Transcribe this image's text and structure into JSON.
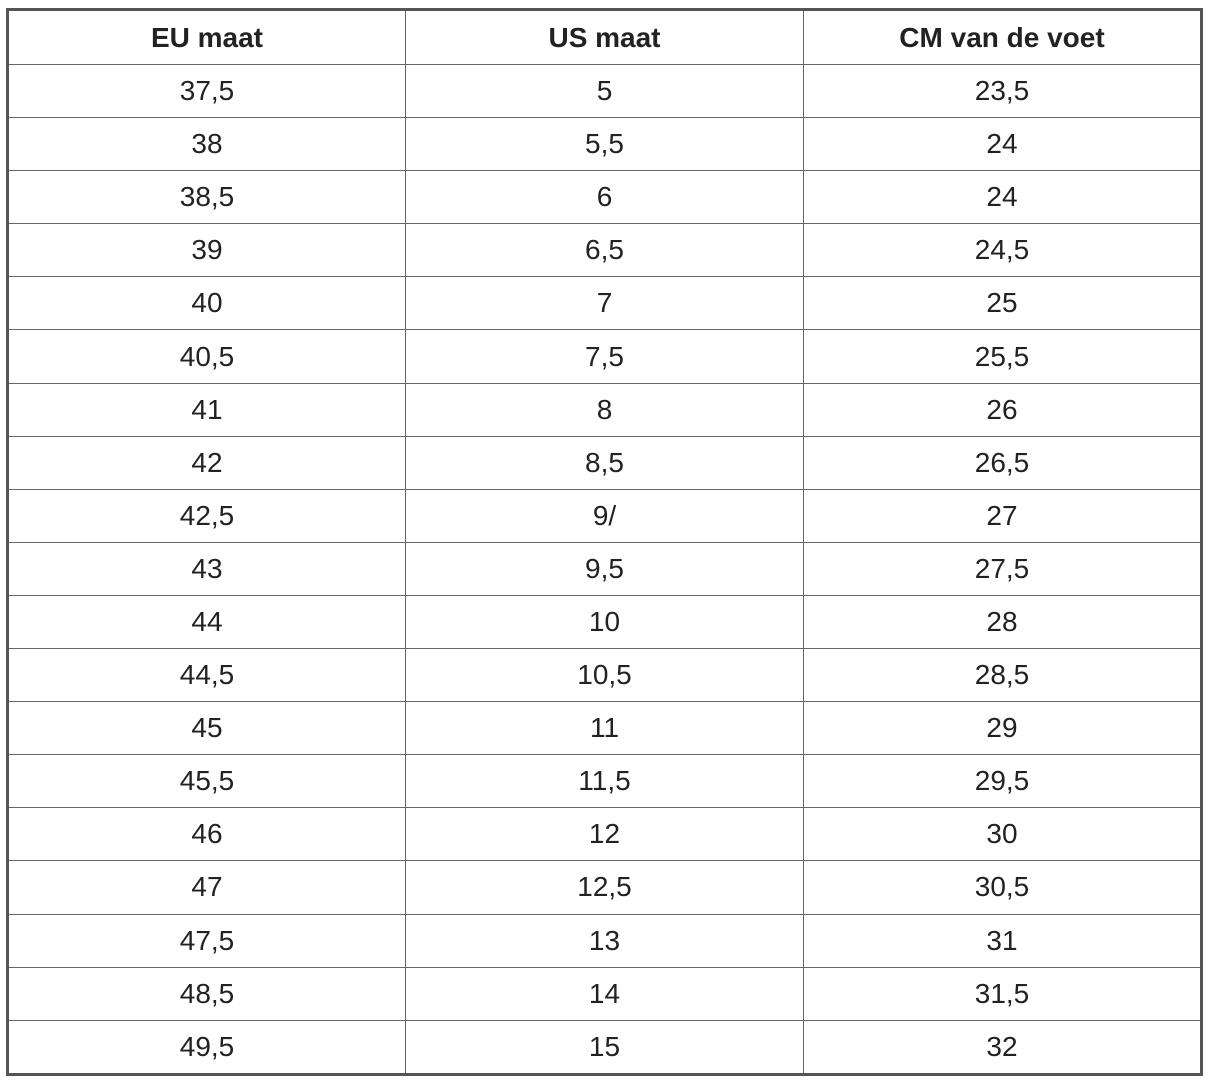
{
  "table": {
    "header": [
      "EU maat",
      "US maat",
      "CM van de voet"
    ],
    "rows": [
      [
        "37,5",
        "5",
        "23,5"
      ],
      [
        "38",
        "5,5",
        "24"
      ],
      [
        "38,5",
        "6",
        "24"
      ],
      [
        "39",
        "6,5",
        "24,5"
      ],
      [
        "40",
        "7",
        "25"
      ],
      [
        "40,5",
        "7,5",
        "25,5"
      ],
      [
        "41",
        "8",
        "26"
      ],
      [
        "42",
        "8,5",
        "26,5"
      ],
      [
        "42,5",
        "9/",
        "27"
      ],
      [
        "43",
        "9,5",
        "27,5"
      ],
      [
        "44",
        "10",
        "28"
      ],
      [
        "44,5",
        "10,5",
        "28,5"
      ],
      [
        "45",
        "11",
        "29"
      ],
      [
        "45,5",
        "11,5",
        "29,5"
      ],
      [
        "46",
        "12",
        "30"
      ],
      [
        "47",
        "12,5",
        "30,5"
      ],
      [
        "47,5",
        "13",
        "31"
      ],
      [
        "48,5",
        "14",
        "31,5"
      ],
      [
        "49,5",
        "15",
        "32"
      ]
    ]
  }
}
